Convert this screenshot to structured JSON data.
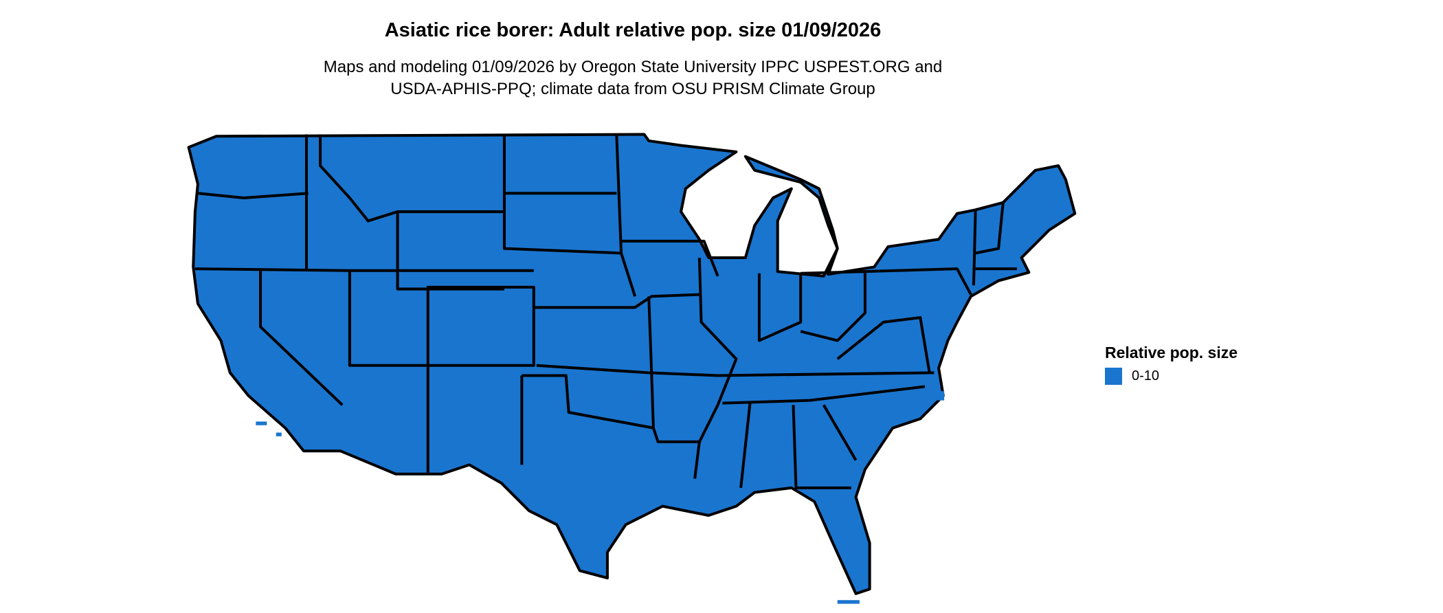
{
  "title": "Asiatic rice borer: Adult relative pop. size 01/09/2026",
  "subtitle_line1": "Maps and modeling 01/09/2026 by Oregon State University IPPC USPEST.ORG and",
  "subtitle_line2": "USDA-APHIS-PPQ; climate data from OSU PRISM Climate Group",
  "map": {
    "region": "Contiguous United States",
    "fill_color": "#1A75CF",
    "border_color": "#000000"
  },
  "legend": {
    "title": "Relative pop. size",
    "items": [
      {
        "label": "0-10",
        "color": "#1A75CF"
      }
    ]
  }
}
